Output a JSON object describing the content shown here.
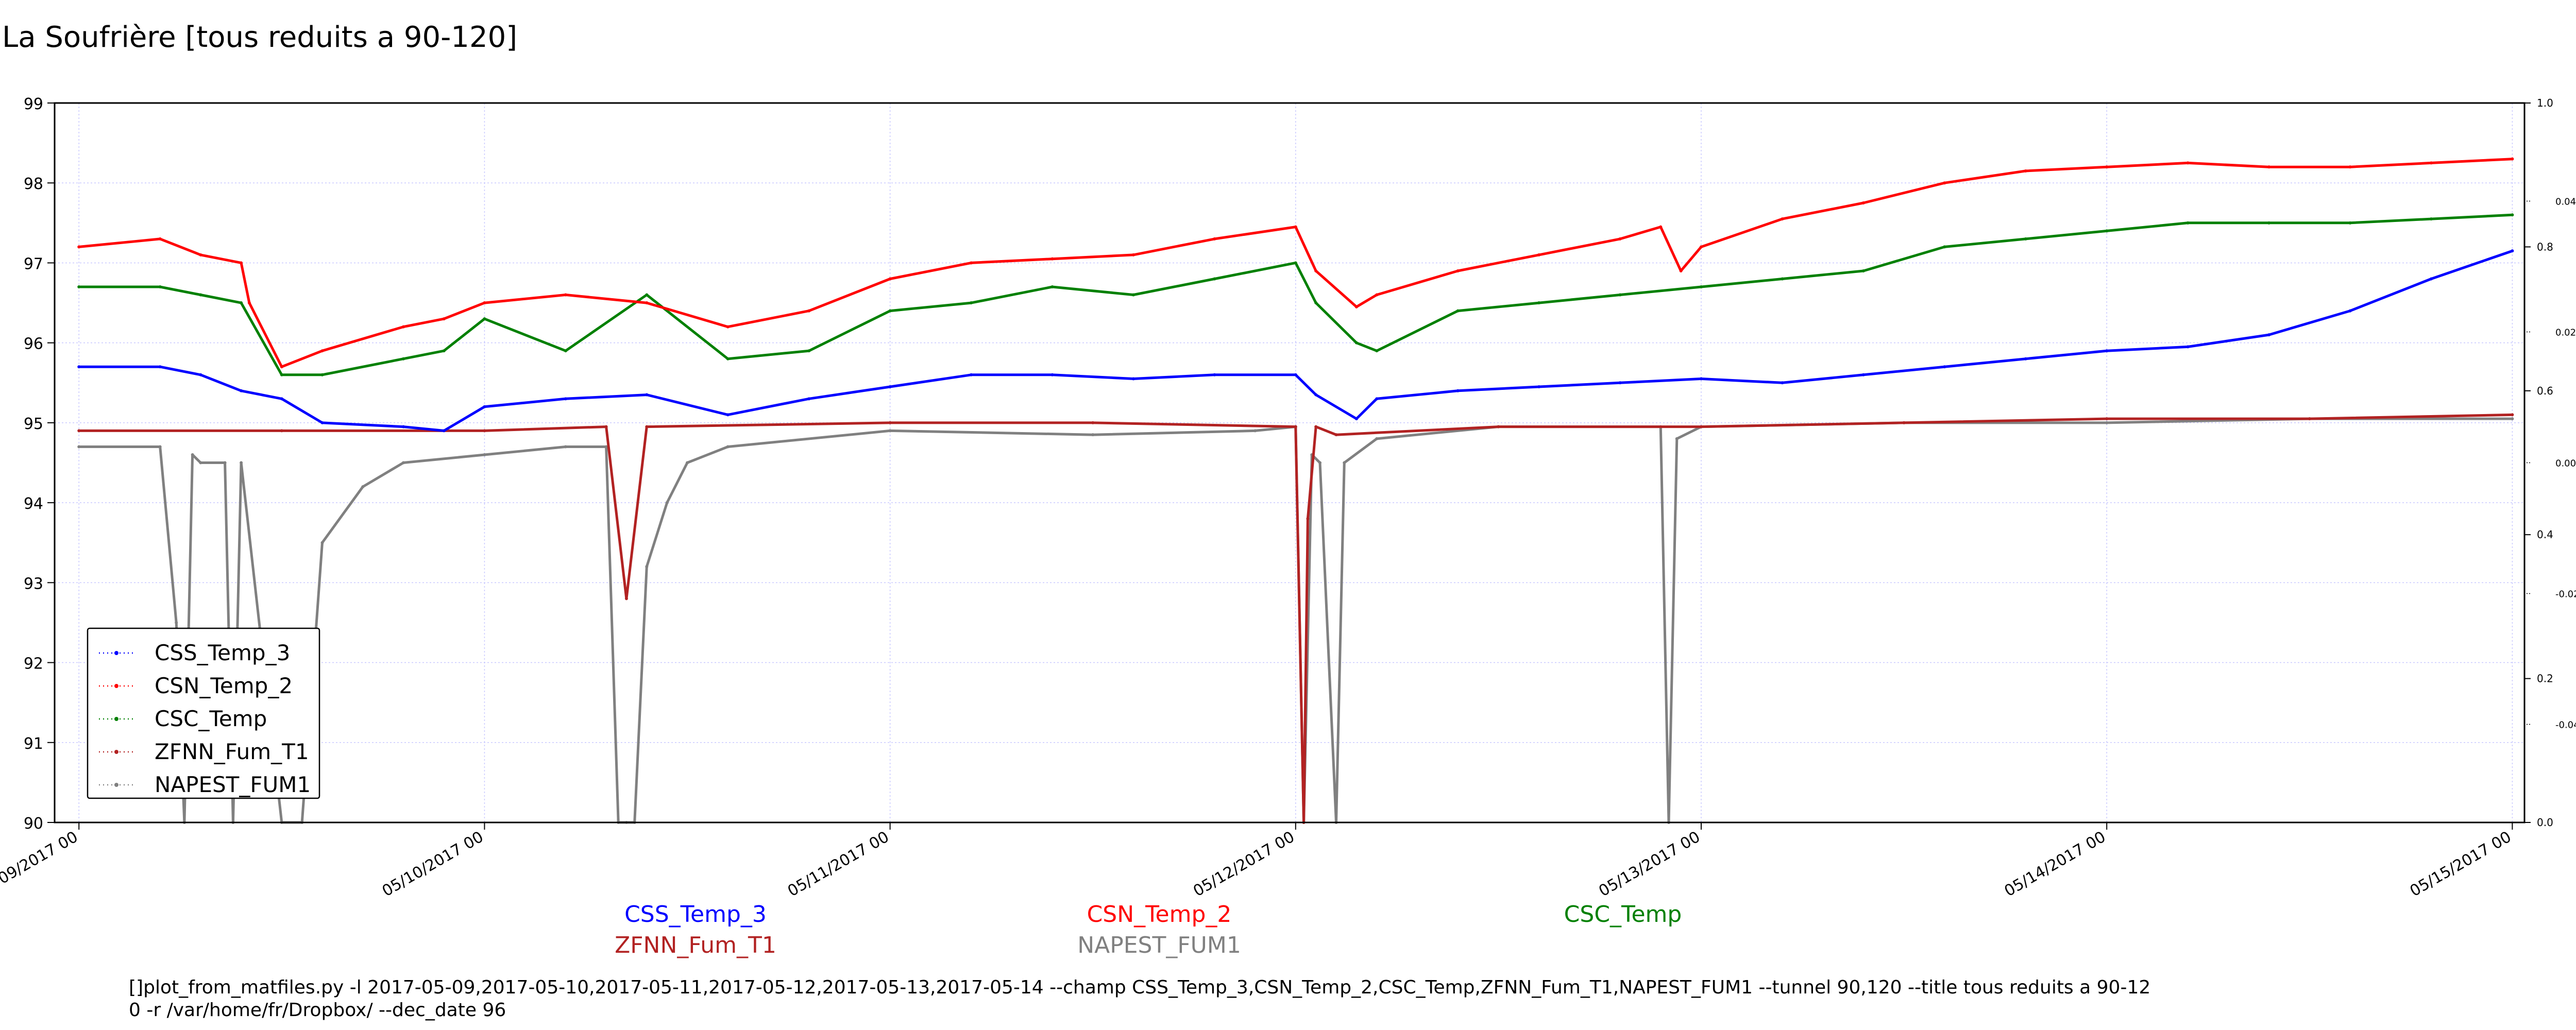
{
  "title": "La Soufrière [tous reduits a 90-120]",
  "series_labels_below": [
    {
      "name": "CSS_Temp_3",
      "color": "#0000ff"
    },
    {
      "name": "CSN_Temp_2",
      "color": "#ff0000"
    },
    {
      "name": "CSC_Temp",
      "color": "#008000"
    },
    {
      "name": "ZFNN_Fum_T1",
      "color": "#b22222"
    },
    {
      "name": "NAPEST_FUM1",
      "color": "#808080"
    }
  ],
  "command": {
    "line1": "[]plot_from_matfiles.py -l 2017-05-09,2017-05-10,2017-05-11,2017-05-12,2017-05-13,2017-05-14 --champ CSS_Temp_3,CSN_Temp_2,CSC_Temp,ZFNN_Fum_T1,NAPEST_FUM1 --tunnel 90,120 --title tous reduits a 90-12",
    "line2": "0 -r /var/home/fr/Dropbox/ --dec_date 96"
  },
  "chart_data": {
    "type": "line",
    "title": "La Soufrière [tous reduits a 90-120]",
    "xlabel": "",
    "ylabel": "",
    "x_ticks": [
      "05/09/2017 00",
      "05/10/2017 00",
      "05/11/2017 00",
      "05/12/2017 00",
      "05/13/2017 00",
      "05/14/2017 00",
      "05/15/2017 00"
    ],
    "xlim": [
      -0.06,
      6.03
    ],
    "ylim": [
      90,
      99
    ],
    "y_ticks": [
      90,
      91,
      92,
      93,
      94,
      95,
      96,
      97,
      98,
      99
    ],
    "right_axis_ticks": [
      "0.0",
      "0.2",
      "0.4",
      "0.6",
      "0.8",
      "1.0"
    ],
    "right_inner_ticks": [
      "0.04",
      "0.02",
      "0.00",
      "-0.02",
      "-0.04"
    ],
    "grid": true,
    "legend_position": "lower-left",
    "series": [
      {
        "name": "CSS_Temp_3",
        "color": "#0000ff",
        "x": [
          0.0,
          0.2,
          0.3,
          0.4,
          0.5,
          0.6,
          0.8,
          0.9,
          1.0,
          1.2,
          1.4,
          1.6,
          1.8,
          2.0,
          2.2,
          2.4,
          2.6,
          2.8,
          3.0,
          3.05,
          3.15,
          3.2,
          3.4,
          3.6,
          3.8,
          4.0,
          4.2,
          4.4,
          4.6,
          4.8,
          5.0,
          5.2,
          5.4,
          5.6,
          5.8,
          6.0
        ],
        "y": [
          95.7,
          95.7,
          95.6,
          95.4,
          95.3,
          95.0,
          94.95,
          94.9,
          95.2,
          95.3,
          95.35,
          95.1,
          95.3,
          95.45,
          95.6,
          95.6,
          95.55,
          95.6,
          95.6,
          95.35,
          95.05,
          95.3,
          95.4,
          95.45,
          95.5,
          95.55,
          95.5,
          95.6,
          95.7,
          95.8,
          95.9,
          95.95,
          96.1,
          96.4,
          96.8,
          97.15
        ]
      },
      {
        "name": "CSN_Temp_2",
        "color": "#ff0000",
        "x": [
          0.0,
          0.2,
          0.3,
          0.4,
          0.42,
          0.5,
          0.6,
          0.8,
          0.9,
          1.0,
          1.2,
          1.4,
          1.6,
          1.8,
          2.0,
          2.2,
          2.4,
          2.6,
          2.8,
          3.0,
          3.05,
          3.15,
          3.2,
          3.4,
          3.6,
          3.8,
          3.9,
          3.95,
          4.0,
          4.2,
          4.4,
          4.6,
          4.8,
          5.0,
          5.2,
          5.4,
          5.6,
          5.8,
          6.0
        ],
        "y": [
          97.2,
          97.3,
          97.1,
          97.0,
          96.5,
          95.7,
          95.9,
          96.2,
          96.3,
          96.5,
          96.6,
          96.5,
          96.2,
          96.4,
          96.8,
          97.0,
          97.05,
          97.1,
          97.3,
          97.45,
          96.9,
          96.45,
          96.6,
          96.9,
          97.1,
          97.3,
          97.45,
          96.9,
          97.2,
          97.55,
          97.75,
          98.0,
          98.15,
          98.2,
          98.25,
          98.2,
          98.2,
          98.25,
          98.3
        ]
      },
      {
        "name": "CSC_Temp",
        "color": "#008000",
        "x": [
          0.0,
          0.2,
          0.3,
          0.4,
          0.5,
          0.6,
          0.8,
          0.9,
          1.0,
          1.2,
          1.4,
          1.6,
          1.8,
          2.0,
          2.2,
          2.4,
          2.6,
          2.8,
          3.0,
          3.05,
          3.15,
          3.2,
          3.4,
          3.6,
          3.8,
          4.0,
          4.2,
          4.4,
          4.6,
          4.8,
          5.0,
          5.2,
          5.4,
          5.6,
          5.8,
          6.0
        ],
        "y": [
          96.7,
          96.7,
          96.6,
          96.5,
          95.6,
          95.6,
          95.8,
          95.9,
          96.3,
          95.9,
          96.6,
          95.8,
          95.9,
          96.4,
          96.5,
          96.7,
          96.6,
          96.8,
          97.0,
          96.5,
          96.0,
          95.9,
          96.4,
          96.5,
          96.6,
          96.7,
          96.8,
          96.9,
          97.2,
          97.3,
          97.4,
          97.5,
          97.5,
          97.5,
          97.55,
          97.6
        ]
      },
      {
        "name": "ZFNN_Fum_T1",
        "color": "#b22222",
        "x": [
          0.0,
          0.5,
          1.0,
          1.3,
          1.35,
          1.4,
          2.0,
          2.5,
          3.0,
          3.02,
          3.03,
          3.05,
          3.1,
          3.5,
          4.0,
          4.5,
          5.0,
          5.5,
          6.0
        ],
        "y": [
          94.9,
          94.9,
          94.9,
          94.95,
          92.8,
          94.95,
          95.0,
          95.0,
          94.95,
          90.0,
          93.8,
          94.95,
          94.85,
          94.95,
          94.95,
          95.0,
          95.05,
          95.05,
          95.1
        ]
      },
      {
        "name": "NAPEST_FUM1",
        "color": "#808080",
        "x": [
          0.0,
          0.2,
          0.24,
          0.26,
          0.28,
          0.3,
          0.36,
          0.38,
          0.4,
          0.5,
          0.55,
          0.6,
          0.7,
          0.8,
          1.0,
          1.2,
          1.3,
          1.33,
          1.35,
          1.37,
          1.4,
          1.45,
          1.5,
          1.6,
          2.0,
          2.5,
          2.9,
          3.0,
          3.02,
          3.04,
          3.06,
          3.1,
          3.12,
          3.2,
          3.5,
          3.9,
          3.92,
          3.94,
          4.0,
          4.5,
          5.0,
          5.5,
          6.0
        ],
        "y": [
          94.7,
          94.7,
          92.5,
          90.0,
          94.6,
          94.5,
          94.5,
          90.0,
          94.5,
          90.0,
          90.0,
          93.5,
          94.2,
          94.5,
          94.6,
          94.7,
          94.7,
          90.0,
          90.0,
          90.0,
          93.2,
          94.0,
          94.5,
          94.7,
          94.9,
          94.85,
          94.9,
          94.95,
          90.0,
          94.6,
          94.5,
          90.0,
          94.5,
          94.8,
          94.95,
          94.95,
          90.0,
          94.8,
          94.95,
          95.0,
          95.0,
          95.05,
          95.05
        ]
      }
    ],
    "legend": [
      {
        "name": "CSS_Temp_3",
        "color": "#0000ff"
      },
      {
        "name": "CSN_Temp_2",
        "color": "#ff0000"
      },
      {
        "name": "CSC_Temp",
        "color": "#008000"
      },
      {
        "name": "ZFNN_Fum_T1",
        "color": "#b22222"
      },
      {
        "name": "NAPEST_FUM1",
        "color": "#808080"
      }
    ]
  }
}
